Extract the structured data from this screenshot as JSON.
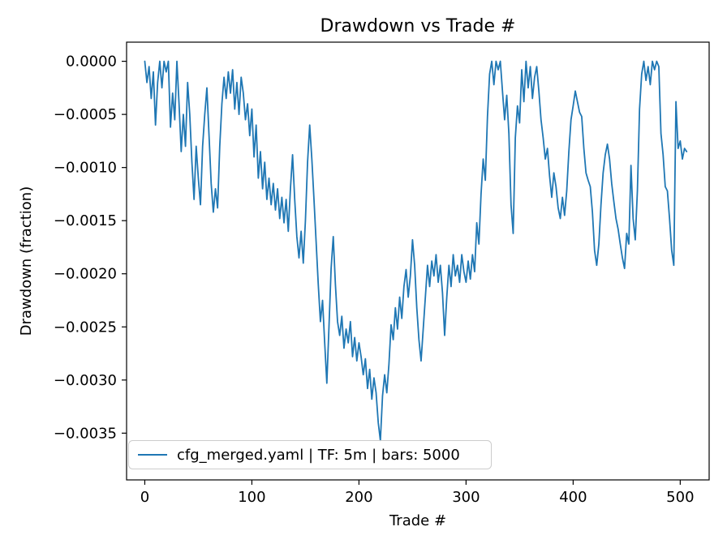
{
  "chart_data": {
    "type": "line",
    "title": "Drawdown vs Trade #",
    "xlabel": "Trade #",
    "ylabel": "Drawdown (fraction)",
    "legend_label": "cfg_merged.yaml | TF: 5m | bars: 5000",
    "legend_position": "lower left",
    "grid": false,
    "line_color": "#1f77b4",
    "background_color": "#ffffff",
    "axis_color": "#000000",
    "legend_border_color": "#cccccc",
    "xlim": [
      -17,
      527
    ],
    "ylim": [
      -0.00394,
      0.00018
    ],
    "x_ticks": [
      {
        "v": 0,
        "label": "0"
      },
      {
        "v": 100,
        "label": "100"
      },
      {
        "v": 200,
        "label": "200"
      },
      {
        "v": 300,
        "label": "300"
      },
      {
        "v": 400,
        "label": "400"
      },
      {
        "v": 500,
        "label": "500"
      }
    ],
    "y_ticks": [
      {
        "v": 0.0,
        "label": "0.0000"
      },
      {
        "v": -0.0005,
        "label": "−0.0005"
      },
      {
        "v": -0.001,
        "label": "−0.0010"
      },
      {
        "v": -0.0015,
        "label": "−0.0015"
      },
      {
        "v": -0.002,
        "label": "−0.0020"
      },
      {
        "v": -0.0025,
        "label": "−0.0025"
      },
      {
        "v": -0.003,
        "label": "−0.0030"
      },
      {
        "v": -0.0035,
        "label": "−0.0035"
      }
    ],
    "series": [
      {
        "name": "cfg_merged.yaml | TF: 5m | bars: 5000",
        "x_start": 0,
        "x_step": 2,
        "values": [
          0,
          -0.0002,
          -5e-05,
          -0.00035,
          -0.0001,
          -0.0006,
          -0.0002,
          0,
          -0.00025,
          0,
          -0.0001,
          0,
          -0.00062,
          -0.0003,
          -0.00055,
          0,
          -0.0004,
          -0.00085,
          -0.0005,
          -0.0008,
          -0.0002,
          -0.0005,
          -0.00095,
          -0.0013,
          -0.0008,
          -0.0011,
          -0.00135,
          -0.0008,
          -0.0005,
          -0.00025,
          -0.0007,
          -0.00115,
          -0.00142,
          -0.0012,
          -0.00138,
          -0.0008,
          -0.0004,
          -0.00015,
          -0.00035,
          -0.0001,
          -0.0003,
          -8e-05,
          -0.00045,
          -0.0002,
          -0.0005,
          -0.00015,
          -0.0003,
          -0.00055,
          -0.0004,
          -0.0007,
          -0.00045,
          -0.0009,
          -0.0006,
          -0.0011,
          -0.00085,
          -0.0012,
          -0.00095,
          -0.0013,
          -0.0011,
          -0.00135,
          -0.00115,
          -0.0014,
          -0.0012,
          -0.00148,
          -0.00128,
          -0.00152,
          -0.0013,
          -0.0016,
          -0.0012,
          -0.00088,
          -0.0013,
          -0.00165,
          -0.00185,
          -0.0016,
          -0.0019,
          -0.0015,
          -0.00095,
          -0.0006,
          -0.00092,
          -0.0013,
          -0.0017,
          -0.0021,
          -0.00245,
          -0.00225,
          -0.00265,
          -0.00303,
          -0.0025,
          -0.00195,
          -0.00165,
          -0.0021,
          -0.00245,
          -0.00258,
          -0.0024,
          -0.0027,
          -0.00252,
          -0.00265,
          -0.00245,
          -0.00278,
          -0.0026,
          -0.00282,
          -0.00265,
          -0.00278,
          -0.00295,
          -0.0028,
          -0.00308,
          -0.0029,
          -0.00318,
          -0.00298,
          -0.00312,
          -0.0034,
          -0.00357,
          -0.00315,
          -0.00295,
          -0.00312,
          -0.00285,
          -0.00248,
          -0.00262,
          -0.00232,
          -0.00252,
          -0.00222,
          -0.00242,
          -0.00212,
          -0.00196,
          -0.00222,
          -0.00202,
          -0.00168,
          -0.00192,
          -0.00232,
          -0.00262,
          -0.00282,
          -0.00252,
          -0.00222,
          -0.00192,
          -0.00212,
          -0.00188,
          -0.00202,
          -0.00182,
          -0.00208,
          -0.00192,
          -0.00218,
          -0.00258,
          -0.00222,
          -0.00192,
          -0.00212,
          -0.00182,
          -0.00202,
          -0.00192,
          -0.00208,
          -0.00182,
          -0.00198,
          -0.00208,
          -0.00188,
          -0.00205,
          -0.00182,
          -0.00198,
          -0.00152,
          -0.00172,
          -0.00125,
          -0.00092,
          -0.00112,
          -0.00052,
          -0.00012,
          0,
          -0.00022,
          0,
          -8e-05,
          0,
          -0.00028,
          -0.00055,
          -0.00032,
          -0.00068,
          -0.00135,
          -0.00162,
          -0.00072,
          -0.00042,
          -0.00058,
          -8e-05,
          -0.00038,
          0,
          -0.00025,
          -5e-05,
          -0.00035,
          -0.00015,
          -5e-05,
          -0.00028,
          -0.00055,
          -0.00072,
          -0.00092,
          -0.00082,
          -0.00108,
          -0.00128,
          -0.00105,
          -0.00118,
          -0.00138,
          -0.00148,
          -0.00128,
          -0.00145,
          -0.00122,
          -0.00085,
          -0.00055,
          -0.00042,
          -0.00028,
          -0.00038,
          -0.00048,
          -0.00052,
          -0.00082,
          -0.00105,
          -0.00112,
          -0.00118,
          -0.00142,
          -0.00178,
          -0.00192,
          -0.00172,
          -0.00135,
          -0.00105,
          -0.00088,
          -0.00078,
          -0.00092,
          -0.00115,
          -0.00132,
          -0.00148,
          -0.00158,
          -0.00172,
          -0.00185,
          -0.00195,
          -0.00162,
          -0.00172,
          -0.00098,
          -0.00148,
          -0.00168,
          -0.00122,
          -0.00045,
          -0.00012,
          0,
          -0.00018,
          -5e-05,
          -0.00022,
          0,
          -8e-05,
          0,
          -5e-05,
          -0.00068,
          -0.00088,
          -0.00118,
          -0.00122,
          -0.00148,
          -0.00178,
          -0.00192,
          -0.00038,
          -0.00082,
          -0.00075,
          -0.00092,
          -0.00082,
          -0.00085
        ]
      }
    ]
  }
}
